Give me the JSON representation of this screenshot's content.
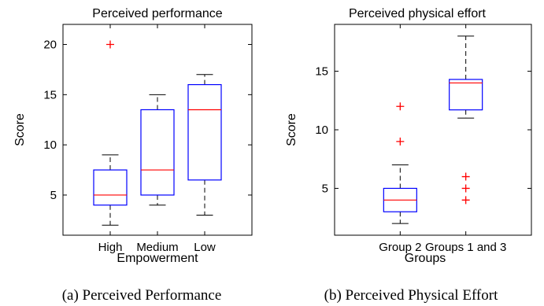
{
  "chart_data": [
    {
      "type": "box",
      "title": "Perceived performance",
      "xlabel": "Empowerment",
      "ylabel": "Score",
      "ylim": [
        1,
        22
      ],
      "yticks": [
        5,
        10,
        15,
        20
      ],
      "categories": [
        "High",
        "Medium",
        "Low"
      ],
      "boxes": [
        {
          "category": "High",
          "whisker_low": 2,
          "q1": 4,
          "median": 5,
          "q3": 7.5,
          "whisker_high": 9,
          "outliers": [
            20
          ]
        },
        {
          "category": "Medium",
          "whisker_low": 4,
          "q1": 5,
          "median": 7.5,
          "q3": 13.5,
          "whisker_high": 15,
          "outliers": []
        },
        {
          "category": "Low",
          "whisker_low": 3,
          "q1": 6.5,
          "median": 13.5,
          "q3": 16,
          "whisker_high": 17,
          "outliers": []
        }
      ],
      "grid": false,
      "caption": "(a) Perceived Performance"
    },
    {
      "type": "box",
      "title": "Perceived physical effort",
      "xlabel": "Groups",
      "ylabel": "Score",
      "ylim": [
        1,
        19
      ],
      "yticks": [
        5,
        10,
        15
      ],
      "categories": [
        "Group 2",
        "Groups 1 and 3"
      ],
      "boxes": [
        {
          "category": "Group 2",
          "whisker_low": 2,
          "q1": 3,
          "median": 4,
          "q3": 5,
          "whisker_high": 7,
          "outliers": [
            9,
            12
          ]
        },
        {
          "category": "Groups 1 and 3",
          "whisker_low": 11,
          "q1": 11.7,
          "median": 14,
          "q3": 14.3,
          "whisker_high": 18,
          "outliers": [
            4,
            5,
            6
          ]
        }
      ],
      "grid": false,
      "caption": "(b) Perceived Physical Effort"
    }
  ],
  "colors": {
    "box": "#0000ff",
    "median": "#ff0000",
    "outlier": "#ff0000",
    "whisker": "#000000",
    "axes": "#000000"
  }
}
